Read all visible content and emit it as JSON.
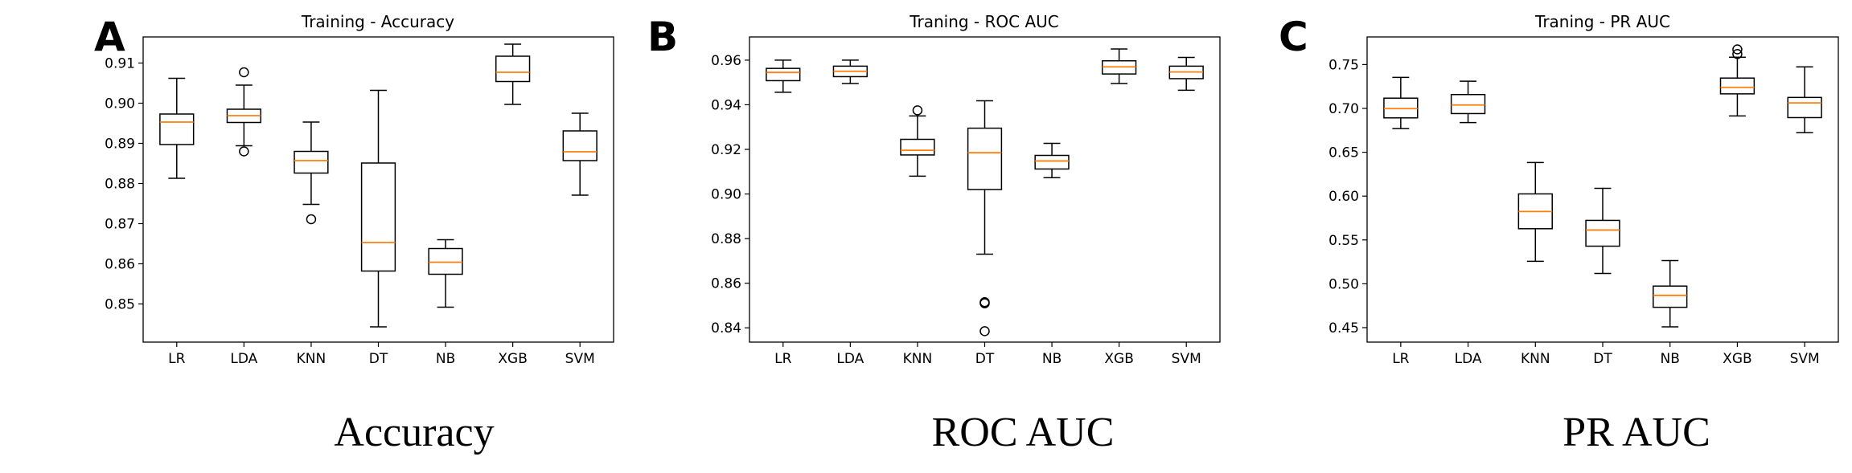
{
  "chart_data": [
    {
      "panel_label": "A",
      "type": "box",
      "title": "Training - Accuracy",
      "caption": "Accuracy",
      "categories": [
        "LR",
        "LDA",
        "KNN",
        "DT",
        "NB",
        "XGB",
        "SVM"
      ],
      "ylim": [
        0.8405,
        0.9165
      ],
      "yticks": [
        0.85,
        0.86,
        0.87,
        0.88,
        0.89,
        0.9,
        0.91
      ],
      "ytick_labels": [
        "0.85",
        "0.86",
        "0.87",
        "0.88",
        "0.89",
        "0.90",
        "0.91"
      ],
      "boxes": [
        {
          "whislo": 0.8813,
          "q1": 0.8897,
          "med": 0.8953,
          "q3": 0.8973,
          "whishi": 0.9062,
          "fliers": []
        },
        {
          "whislo": 0.8894,
          "q1": 0.8952,
          "med": 0.8969,
          "q3": 0.8985,
          "whishi": 0.9045,
          "fliers": [
            0.9077,
            0.888
          ]
        },
        {
          "whislo": 0.8748,
          "q1": 0.8826,
          "med": 0.8857,
          "q3": 0.888,
          "whishi": 0.8953,
          "fliers": [
            0.8711
          ]
        },
        {
          "whislo": 0.8443,
          "q1": 0.8582,
          "med": 0.8653,
          "q3": 0.8851,
          "whishi": 0.9032,
          "fliers": []
        },
        {
          "whislo": 0.8492,
          "q1": 0.8574,
          "med": 0.8604,
          "q3": 0.8638,
          "whishi": 0.866,
          "fliers": []
        },
        {
          "whislo": 0.8997,
          "q1": 0.9054,
          "med": 0.9077,
          "q3": 0.9117,
          "whishi": 0.9147,
          "fliers": []
        },
        {
          "whislo": 0.8771,
          "q1": 0.8857,
          "med": 0.8879,
          "q3": 0.8931,
          "whishi": 0.8975,
          "fliers": []
        }
      ]
    },
    {
      "panel_label": "B",
      "type": "box",
      "title": "Traning - ROC AUC",
      "caption": "ROC AUC",
      "categories": [
        "LR",
        "LDA",
        "KNN",
        "DT",
        "NB",
        "XGB",
        "SVM"
      ],
      "ylim": [
        0.8336,
        0.9704
      ],
      "yticks": [
        0.84,
        0.86,
        0.88,
        0.9,
        0.92,
        0.94,
        0.96
      ],
      "ytick_labels": [
        "0.84",
        "0.86",
        "0.88",
        "0.90",
        "0.92",
        "0.94",
        "0.96"
      ],
      "boxes": [
        {
          "whislo": 0.9456,
          "q1": 0.9508,
          "med": 0.9545,
          "q3": 0.9563,
          "whishi": 0.96,
          "fliers": []
        },
        {
          "whislo": 0.9495,
          "q1": 0.9526,
          "med": 0.955,
          "q3": 0.9573,
          "whishi": 0.96,
          "fliers": []
        },
        {
          "whislo": 0.908,
          "q1": 0.9175,
          "med": 0.9196,
          "q3": 0.9245,
          "whishi": 0.935,
          "fliers": [
            0.9375
          ]
        },
        {
          "whislo": 0.873,
          "q1": 0.902,
          "med": 0.9185,
          "q3": 0.9295,
          "whishi": 0.9418,
          "fliers": [
            0.8515,
            0.851,
            0.8385
          ]
        },
        {
          "whislo": 0.9073,
          "q1": 0.9112,
          "med": 0.9148,
          "q3": 0.9173,
          "whishi": 0.9227,
          "fliers": []
        },
        {
          "whislo": 0.9495,
          "q1": 0.9538,
          "med": 0.957,
          "q3": 0.9597,
          "whishi": 0.965,
          "fliers": []
        },
        {
          "whislo": 0.9465,
          "q1": 0.9517,
          "med": 0.9547,
          "q3": 0.9573,
          "whishi": 0.9612,
          "fliers": []
        }
      ]
    },
    {
      "panel_label": "C",
      "type": "box",
      "title": "Traning - PR AUC",
      "caption": "PR AUC",
      "categories": [
        "LR",
        "LDA",
        "KNN",
        "DT",
        "NB",
        "XGB",
        "SVM"
      ],
      "ylim": [
        0.4335,
        0.7815
      ],
      "yticks": [
        0.45,
        0.5,
        0.55,
        0.6,
        0.65,
        0.7,
        0.75
      ],
      "ytick_labels": [
        "0.45",
        "0.50",
        "0.55",
        "0.60",
        "0.65",
        "0.70",
        "0.75"
      ],
      "boxes": [
        {
          "whislo": 0.677,
          "q1": 0.6892,
          "med": 0.6998,
          "q3": 0.7117,
          "whishi": 0.7354,
          "fliers": []
        },
        {
          "whislo": 0.6839,
          "q1": 0.6941,
          "med": 0.7039,
          "q3": 0.7158,
          "whishi": 0.731,
          "fliers": []
        },
        {
          "whislo": 0.5257,
          "q1": 0.5628,
          "med": 0.5824,
          "q3": 0.6025,
          "whishi": 0.6383,
          "fliers": []
        },
        {
          "whislo": 0.5118,
          "q1": 0.5429,
          "med": 0.5613,
          "q3": 0.5723,
          "whishi": 0.6089,
          "fliers": []
        },
        {
          "whislo": 0.4509,
          "q1": 0.4732,
          "med": 0.4868,
          "q3": 0.4974,
          "whishi": 0.5264,
          "fliers": []
        },
        {
          "whislo": 0.6914,
          "q1": 0.7166,
          "med": 0.724,
          "q3": 0.7346,
          "whishi": 0.7584,
          "fliers": [
            0.7673,
            0.762
          ]
        },
        {
          "whislo": 0.6723,
          "q1": 0.6895,
          "med": 0.7063,
          "q3": 0.7125,
          "whishi": 0.7474,
          "fliers": []
        }
      ]
    }
  ],
  "colors": {
    "box": "#000000",
    "median": "#ff7f0e",
    "background": "#ffffff"
  }
}
